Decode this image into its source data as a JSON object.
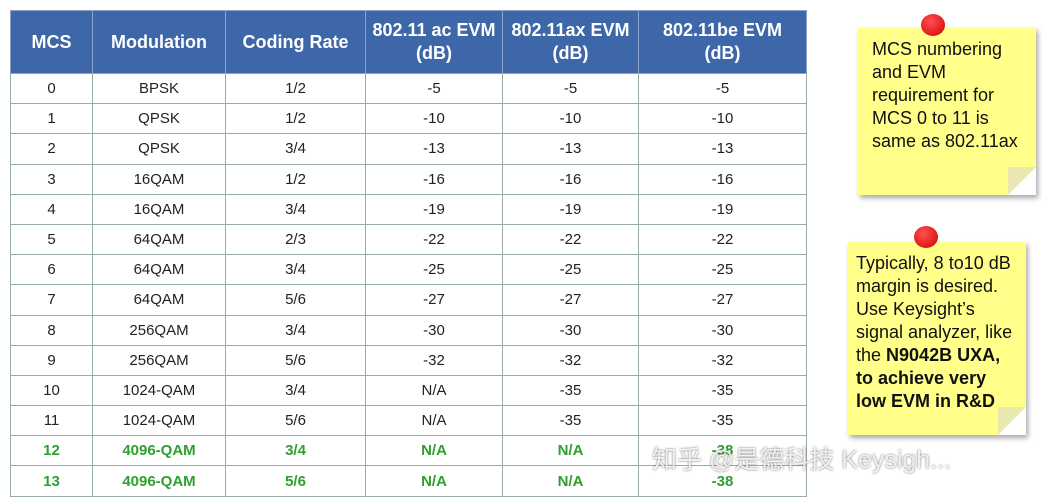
{
  "table": {
    "header": [
      "MCS",
      "Modulation",
      "Coding Rate",
      "802.11 ac EVM (dB)",
      "802.11ax EVM (dB)",
      "802.11be EVM (dB)"
    ],
    "rows": [
      [
        "0",
        "BPSK",
        "1/2",
        "-5",
        "-5",
        "-5"
      ],
      [
        "1",
        "QPSK",
        "1/2",
        "-10",
        "-10",
        "-10"
      ],
      [
        "2",
        "QPSK",
        "3/4",
        "-13",
        "-13",
        "-13"
      ],
      [
        "3",
        "16QAM",
        "1/2",
        "-16",
        "-16",
        "-16"
      ],
      [
        "4",
        "16QAM",
        "3/4",
        "-19",
        "-19",
        "-19"
      ],
      [
        "5",
        "64QAM",
        "2/3",
        "-22",
        "-22",
        "-22"
      ],
      [
        "6",
        "64QAM",
        "3/4",
        "-25",
        "-25",
        "-25"
      ],
      [
        "7",
        "64QAM",
        "5/6",
        "-27",
        "-27",
        "-27"
      ],
      [
        "8",
        "256QAM",
        "3/4",
        "-30",
        "-30",
        "-30"
      ],
      [
        "9",
        "256QAM",
        "5/6",
        "-32",
        "-32",
        "-32"
      ],
      [
        "10",
        "1024-QAM",
        "3/4",
        "N/A",
        "-35",
        "-35"
      ],
      [
        "11",
        "1024-QAM",
        "5/6",
        "N/A",
        "-35",
        "-35"
      ],
      [
        "12",
        "4096-QAM",
        "3/4",
        "N/A",
        "N/A",
        "-38"
      ],
      [
        "13",
        "4096-QAM",
        "5/6",
        "N/A",
        "N/A",
        "-38"
      ]
    ]
  },
  "notes": [
    {
      "segments": [
        "MCS numbering and EVM requirement for MCS 0 to 11 is same as 802.11ax"
      ]
    },
    {
      "segments": [
        "Typically, 8 to10 dB margin is desired. Use Keysight’s signal analyzer, like the ",
        "N9042B UXA,",
        "to achieve very low EVM in R&D"
      ]
    }
  ],
  "watermark": "知乎 @是德科技 Keysigh..."
}
